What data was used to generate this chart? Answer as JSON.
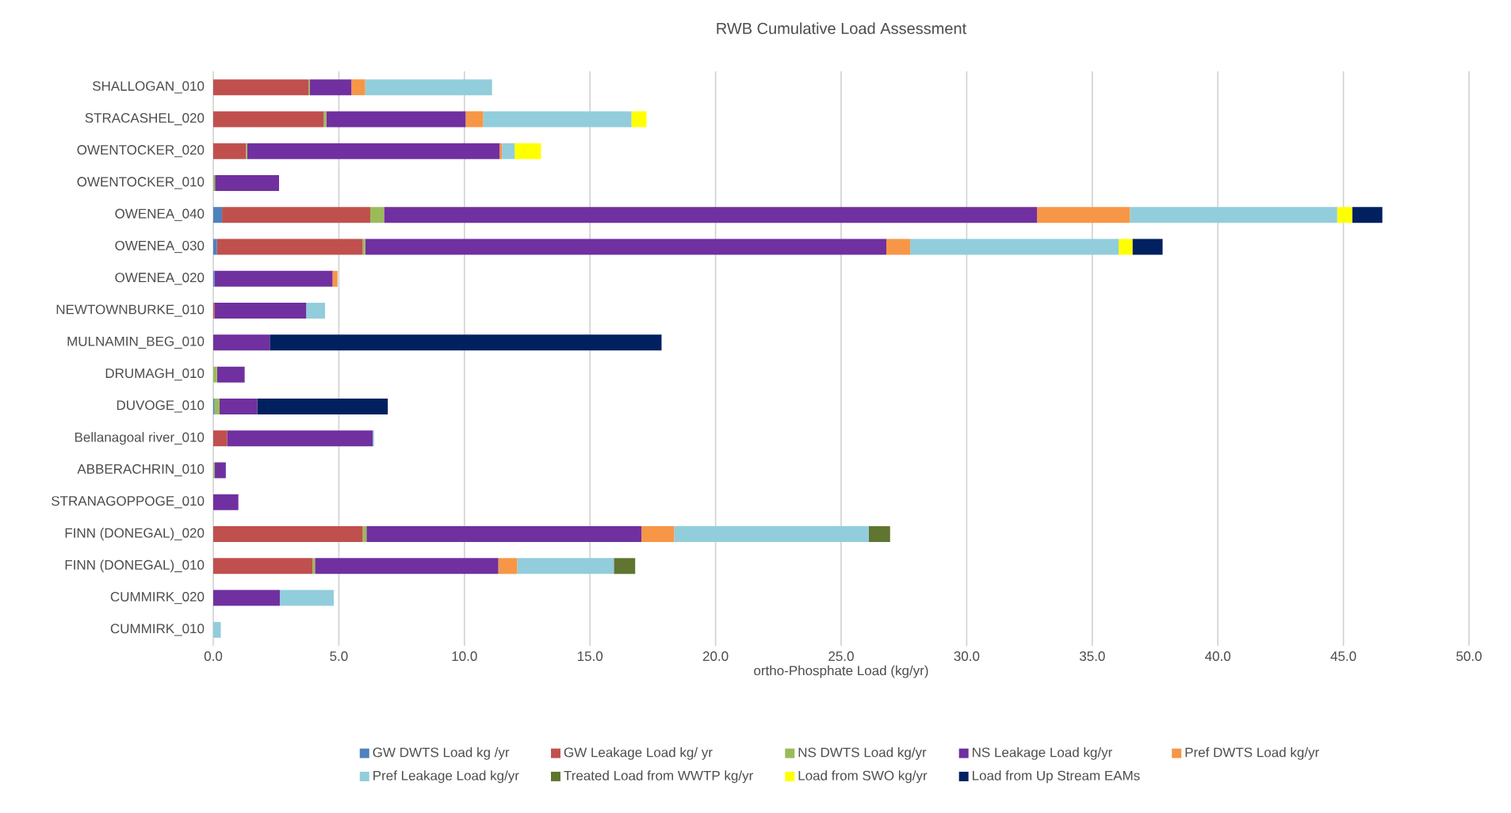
{
  "chart_data": {
    "type": "bar",
    "orientation": "horizontal",
    "stacked": true,
    "title": "RWB Cumulative Load Assessment",
    "xlabel": "ortho-Phosphate Load (kg/yr)",
    "categories": [
      "SHALLOGAN_010",
      "STRACASHEL_020",
      "OWENTOCKER_020",
      "OWENTOCKER_010",
      "OWENEA_040",
      "OWENEA_030",
      "OWENEA_020",
      "NEWTOWNBURKE_010",
      "MULNAMIN_BEG_010",
      "DRUMAGH_010",
      "DUVOGE_010",
      "Bellanagoal river_010",
      "ABBERACHRIN_010",
      "STRANAGOPPOGE_010",
      "FINN (DONEGAL)_020",
      "FINN (DONEGAL)_010",
      "CUMMIRK_020",
      "CUMMIRK_010"
    ],
    "series": [
      {
        "name": "GW DWTS Load kg /yr",
        "color": "#4f81bd",
        "values": [
          0,
          0,
          0,
          0,
          0.35,
          0.15,
          0.05,
          0,
          0,
          0,
          0.05,
          0,
          0,
          0,
          0,
          0,
          0,
          0
        ]
      },
      {
        "name": "GW Leakage Load kg/ yr",
        "color": "#c0504d",
        "values": [
          3.8,
          4.4,
          1.3,
          0,
          5.9,
          5.8,
          0,
          0.05,
          0,
          0,
          0,
          0.55,
          0,
          0,
          5.95,
          3.95,
          0,
          0
        ]
      },
      {
        "name": "NS DWTS Load kg/yr",
        "color": "#9bbb59",
        "values": [
          0.05,
          0.1,
          0.05,
          0.07,
          0.55,
          0.1,
          0,
          0,
          0,
          0.15,
          0.2,
          0,
          0.05,
          0,
          0.15,
          0.1,
          0,
          0
        ]
      },
      {
        "name": "NS Leakage Load kg/yr",
        "color": "#7030a0",
        "values": [
          1.65,
          5.55,
          10.05,
          2.55,
          26.0,
          20.75,
          4.7,
          3.65,
          2.25,
          1.1,
          1.5,
          5.8,
          0.45,
          1.0,
          10.95,
          7.3,
          2.65,
          0
        ]
      },
      {
        "name": "Pref DWTS Load kg/yr",
        "color": "#f79646",
        "values": [
          0.55,
          0.7,
          0.1,
          0,
          3.7,
          0.95,
          0.2,
          0,
          0,
          0,
          0,
          0,
          0,
          0,
          1.3,
          0.75,
          0,
          0
        ]
      },
      {
        "name": "Pref Leakage Load kg/yr",
        "color": "#92cddc",
        "values": [
          5.05,
          5.9,
          0.5,
          0,
          8.25,
          8.3,
          0,
          0.75,
          0,
          0,
          0,
          0.05,
          0,
          0,
          7.75,
          3.85,
          2.15,
          0.3
        ]
      },
      {
        "name": "Treated Load from WWTP kg/yr",
        "color": "#5f7530",
        "values": [
          0,
          0,
          0,
          0,
          0,
          0,
          0,
          0,
          0,
          0,
          0,
          0,
          0,
          0,
          0.85,
          0.85,
          0,
          0
        ]
      },
      {
        "name": "Load from SWO kg/yr",
        "color": "#ffff00",
        "values": [
          0,
          0.6,
          1.05,
          0,
          0.6,
          0.55,
          0,
          0,
          0,
          0,
          0,
          0,
          0,
          0,
          0,
          0,
          0,
          0
        ]
      },
      {
        "name": "Load from Up Stream EAMs",
        "color": "#002060",
        "values": [
          0,
          0,
          0,
          0,
          1.2,
          1.2,
          0,
          0,
          15.6,
          0,
          5.2,
          0,
          0,
          0,
          0,
          0,
          0,
          0
        ]
      }
    ],
    "xlim": [
      0,
      50
    ],
    "xticks": [
      {
        "value": 0,
        "label": "0.0"
      },
      {
        "value": 5,
        "label": "5.0"
      },
      {
        "value": 10,
        "label": "10.0"
      },
      {
        "value": 15,
        "label": "15.0"
      },
      {
        "value": 20,
        "label": "20.0"
      },
      {
        "value": 25,
        "label": "25.0"
      },
      {
        "value": 30,
        "label": "30.0"
      },
      {
        "value": 35,
        "label": "35.0"
      },
      {
        "value": 40,
        "label": "40.0"
      },
      {
        "value": 45,
        "label": "45.0"
      },
      {
        "value": 50,
        "label": "50.0"
      }
    ],
    "grid": "x",
    "legend": "bottom"
  }
}
